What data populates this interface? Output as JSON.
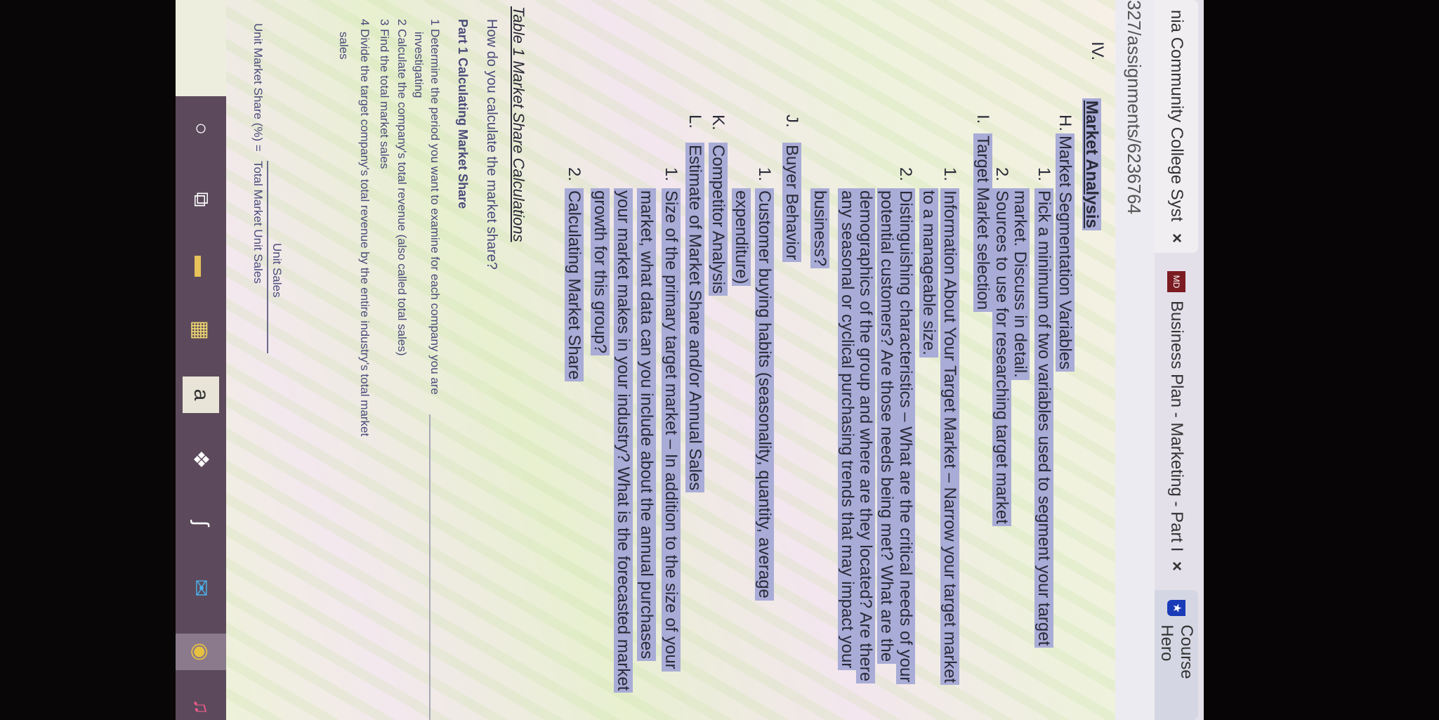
{
  "browser": {
    "tabs": [
      {
        "title": "nia Community College Syst",
        "close": "×",
        "active": true
      },
      {
        "title": "Business Plan - Marketing - Part I",
        "close": "×",
        "favicon": "book-icon",
        "favicon_text": "MD"
      },
      {
        "title": "Course Hero",
        "favicon": "course-hero-shield-icon",
        "favicon_text": "★"
      }
    ],
    "url": "327/assignments/6236764"
  },
  "outline": {
    "section_num": "IV.",
    "section_title": "Market Analysis",
    "lines": [
      {
        "label": "H.",
        "text": "Market Segmentation Variables"
      },
      {
        "label": "1.",
        "text": "Pick a minimum of two variables used to segment your target"
      },
      {
        "label": "",
        "text": "market. Discuss in detail."
      },
      {
        "label": "2.",
        "text": "Sources to use for researching target market"
      },
      {
        "label": "I.",
        "text": "Target Market selection"
      },
      {
        "label": "1.",
        "text": "Information About Your Target Market – Narrow your target market"
      },
      {
        "label": "",
        "text": "to a manageable size."
      },
      {
        "label": "2.",
        "text": "Distinguishing characteristics – What are the critical needs of your"
      },
      {
        "label": "",
        "text": "potential customers? Are those needs being met? What are the"
      },
      {
        "label": "",
        "text": "demographics of the group and where are they located? Are there"
      },
      {
        "label": "",
        "text": "any seasonal or cyclical purchasing trends that may impact your"
      },
      {
        "label": "",
        "text": "business?"
      },
      {
        "label": "J.",
        "text": "Buyer Behavior"
      },
      {
        "label": "1.",
        "text": "Customer buying habits (seasonality, quantity, average"
      },
      {
        "label": "",
        "text": "expenditure)"
      },
      {
        "label": "K.",
        "text": "Competitor Analysis"
      },
      {
        "label": "L.",
        "text": "Estimate of Market Share and/or Annual Sales"
      },
      {
        "label": "1.",
        "text": "Size of the primary target market – In addition to the size of your"
      },
      {
        "label": "",
        "text": "market, what data can you include about the annual purchases"
      },
      {
        "label": "",
        "text": "your market makes in your industry? What is the forecasted market"
      },
      {
        "label": "",
        "text": "growth for this group?"
      },
      {
        "label": "2.",
        "text": "Calculating Market Share"
      }
    ]
  },
  "table_section": {
    "heading": "Table 1 Market Share Calculations",
    "question": "How do you calculate the market share?",
    "part_title": "Part 1 Calculating Market Share",
    "steps": [
      "1 Determine the period you want to examine for each company you are",
      "investigating",
      "2 Calculate the company's total revenue (also called total sales)",
      "3 Find the total market sales",
      "4 Divide the target company's total revenue by the entire industry's total market",
      "sales"
    ],
    "formula": {
      "lhs": "Unit Market Share (%) =",
      "numerator": "Unit Sales",
      "denominator": "Total Market Unit Sales"
    }
  },
  "taskbar": {
    "icons": [
      "cortana-circle-icon",
      "task-view-icon",
      "file-explorer-icon",
      "store-icon",
      "amazon-icon",
      "dropbox-icon",
      "app-icon",
      "mail-icon",
      "chrome-icon",
      "itunes-icon"
    ],
    "amazon_letter": "a"
  },
  "colors": {
    "highlight": "#a9acd6",
    "taskbar": "#5c4a5c",
    "text": "#2a2a38"
  }
}
